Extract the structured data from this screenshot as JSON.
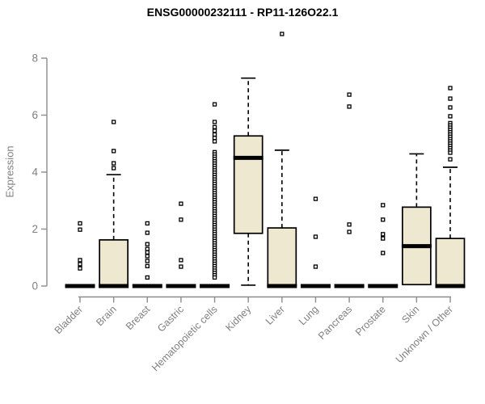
{
  "chart_data": {
    "type": "boxplot",
    "title": "ENSG00000232111 - RP11-126O22.1",
    "ylabel": "Expression",
    "ylim": [
      0,
      9
    ],
    "yticks": [
      0,
      2,
      4,
      6,
      8
    ],
    "grid": false,
    "categories": [
      "Bladder",
      "Brain",
      "Breast",
      "Gastric",
      "Hematopoietic cells",
      "Kidney",
      "Liver",
      "Lung",
      "Pancreas",
      "Prostate",
      "Skin",
      "Unknown / Other"
    ],
    "series": [
      {
        "name": "Bladder",
        "q1": 0,
        "median": 0,
        "q3": 0,
        "whisker_low": 0,
        "whisker_high": 0,
        "outliers": [
          2.2,
          1.98,
          0.91,
          0.77,
          0.62
        ]
      },
      {
        "name": "Brain",
        "q1": 0,
        "median": 0,
        "q3": 1.62,
        "whisker_low": 0,
        "whisker_high": 3.91,
        "outliers": [
          5.76,
          4.74,
          4.31,
          4.14
        ]
      },
      {
        "name": "Breast",
        "q1": 0,
        "median": 0,
        "q3": 0,
        "whisker_low": 0,
        "whisker_high": 0,
        "outliers": [
          2.2,
          1.87,
          1.47,
          1.3,
          1.18,
          1.05,
          0.88,
          0.7,
          0.3
        ]
      },
      {
        "name": "Gastric",
        "q1": 0,
        "median": 0,
        "q3": 0,
        "whisker_low": 0,
        "whisker_high": 0,
        "outliers": [
          2.89,
          2.33,
          0.91,
          0.68
        ]
      },
      {
        "name": "Hematopoietic cells",
        "q1": 0,
        "median": 0,
        "q3": 0,
        "whisker_low": 0,
        "whisker_high": 0,
        "outliers": [
          6.38,
          5.76,
          5.58,
          5.45,
          5.32,
          5.2,
          5.08,
          4.7,
          4.62,
          4.54,
          4.46,
          4.38,
          4.3,
          4.22,
          4.14,
          4.06,
          3.98,
          3.9,
          3.82,
          3.74,
          3.66,
          3.58,
          3.5,
          3.42,
          3.34,
          3.26,
          3.18,
          3.1,
          3.02,
          2.94,
          2.86,
          2.78,
          2.7,
          2.62,
          2.54,
          2.46,
          2.38,
          2.3,
          2.22,
          2.14,
          2.06,
          1.98,
          1.9,
          1.82,
          1.74,
          1.66,
          1.58,
          1.5,
          1.42,
          1.34,
          1.26,
          1.18,
          1.1,
          1.02,
          0.94,
          0.86,
          0.78,
          0.7,
          0.62,
          0.54,
          0.46,
          0.38,
          0.3
        ]
      },
      {
        "name": "Kidney",
        "q1": 1.85,
        "median": 4.5,
        "q3": 5.27,
        "whisker_low": 0.03,
        "whisker_high": 7.3,
        "outliers": []
      },
      {
        "name": "Liver",
        "q1": 0,
        "median": 0,
        "q3": 2.04,
        "whisker_low": 0,
        "whisker_high": 4.77,
        "outliers": [
          8.85
        ]
      },
      {
        "name": "Lung",
        "q1": 0,
        "median": 0,
        "q3": 0,
        "whisker_low": 0,
        "whisker_high": 0,
        "outliers": [
          3.06,
          1.73,
          0.68
        ]
      },
      {
        "name": "Pancreas",
        "q1": 0,
        "median": 0,
        "q3": 0,
        "whisker_low": 0,
        "whisker_high": 0,
        "outliers": [
          6.72,
          6.3,
          2.16,
          1.9
        ]
      },
      {
        "name": "Prostate",
        "q1": 0,
        "median": 0,
        "q3": 0,
        "whisker_low": 0,
        "whisker_high": 0,
        "outliers": [
          2.84,
          2.33,
          1.82,
          1.67,
          1.16
        ]
      },
      {
        "name": "Skin",
        "q1": 0.05,
        "median": 1.4,
        "q3": 2.77,
        "whisker_low": 0.05,
        "whisker_high": 4.64,
        "outliers": []
      },
      {
        "name": "Unknown / Other",
        "q1": 0,
        "median": 0,
        "q3": 1.67,
        "whisker_low": 0,
        "whisker_high": 4.17,
        "outliers": [
          6.95,
          6.58,
          6.27,
          5.96,
          5.72,
          5.64,
          5.56,
          5.48,
          5.4,
          5.32,
          5.24,
          5.16,
          5.08,
          5.0,
          4.92,
          4.84,
          4.76,
          4.68,
          4.45
        ]
      }
    ]
  },
  "colors": {
    "box_fill": "#EDE8CF",
    "box_border": "#000000",
    "median": "#000000",
    "whisker": "#000000",
    "outlier_stroke": "#000000",
    "outlier_fill": "#ffffff",
    "axis_line": "#8c8c8c",
    "tick_label": "#7f7f7f",
    "title": "#000000"
  }
}
